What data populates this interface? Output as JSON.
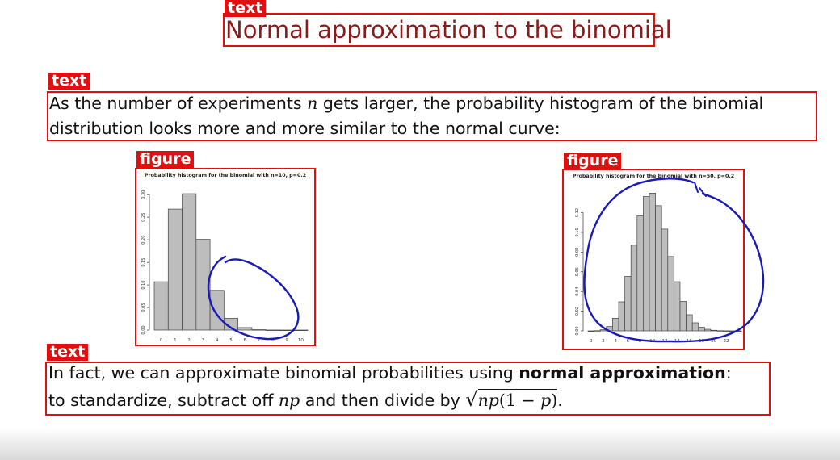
{
  "title": "Normal approximation to the binomial",
  "para1": {
    "line1_a": "As the number of experiments ",
    "line1_var": "n",
    "line1_b": " gets larger, the probability histogram of the binomial",
    "line2": "distribution looks more and more similar to the normal curve:"
  },
  "para2": {
    "line1_a": "In fact, we can approximate binomial probabilities using ",
    "line1_bold": "normal approximation",
    "line1_b": ":",
    "line2_a": "to standardize, subtract off ",
    "line2_var": "np",
    "line2_b": " and then divide by ",
    "sqrt_a": "np",
    "sqrt_b": "(1 − ",
    "sqrt_c": "p",
    "sqrt_d": ")",
    "line2_end": "."
  },
  "labels": {
    "title_tag": "text",
    "para1_tag": "text",
    "fig1_tag": "figure",
    "fig2_tag": "figure",
    "para2_tag": "text"
  },
  "colors": {
    "annotation_red": "#e01010",
    "title_red": "#8b1a1a",
    "bar_fill": "#bdbdbd",
    "ink_blue": "#1a1ab8"
  },
  "chart_data": [
    {
      "type": "bar",
      "title": "Probability histogram for the binomial with n=10, p=0.2",
      "categories": [
        "0",
        "1",
        "2",
        "3",
        "4",
        "5",
        "6",
        "7",
        "8",
        "9",
        "10"
      ],
      "values": [
        0.107,
        0.268,
        0.302,
        0.201,
        0.088,
        0.026,
        0.0055,
        0.0008,
        0.0001,
        0.0,
        0.0
      ],
      "ylim": [
        0,
        0.32
      ],
      "yticks": [
        "0.00",
        "0.05",
        "0.10",
        "0.15",
        "0.20",
        "0.25",
        "0.30"
      ],
      "xticks": [
        "0",
        "1",
        "2",
        "3",
        "4",
        "5",
        "6",
        "7",
        "8",
        "9",
        "10"
      ],
      "xlabel": "",
      "ylabel": "",
      "annotation": "hand-drawn blue circle around right tail"
    },
    {
      "type": "bar",
      "title": "Probability histogram for the binomial with n=50, p=0.2",
      "categories": [
        "0",
        "1",
        "2",
        "3",
        "4",
        "5",
        "6",
        "7",
        "8",
        "9",
        "10",
        "11",
        "12",
        "13",
        "14",
        "15",
        "16",
        "17",
        "18",
        "19",
        "20",
        "21",
        "22",
        "23",
        "24"
      ],
      "values": [
        0.0,
        0.0002,
        0.0011,
        0.0044,
        0.0128,
        0.0295,
        0.0554,
        0.087,
        0.1169,
        0.1364,
        0.1398,
        0.1271,
        0.1033,
        0.0755,
        0.0499,
        0.0299,
        0.0164,
        0.0082,
        0.0037,
        0.0016,
        0.0006,
        0.0002,
        0.0001,
        0.0,
        0.0
      ],
      "ylim": [
        0,
        0.145
      ],
      "yticks": [
        "0.00",
        "0.02",
        "0.04",
        "0.06",
        "0.08",
        "0.10",
        "0.12"
      ],
      "xticks": [
        "0",
        "2",
        "4",
        "6",
        "8",
        "10",
        "12",
        "14",
        "16",
        "18",
        "20",
        "22"
      ],
      "xlabel": "",
      "ylabel": "",
      "annotation": "hand-drawn blue curve tracing the bell shape"
    }
  ]
}
